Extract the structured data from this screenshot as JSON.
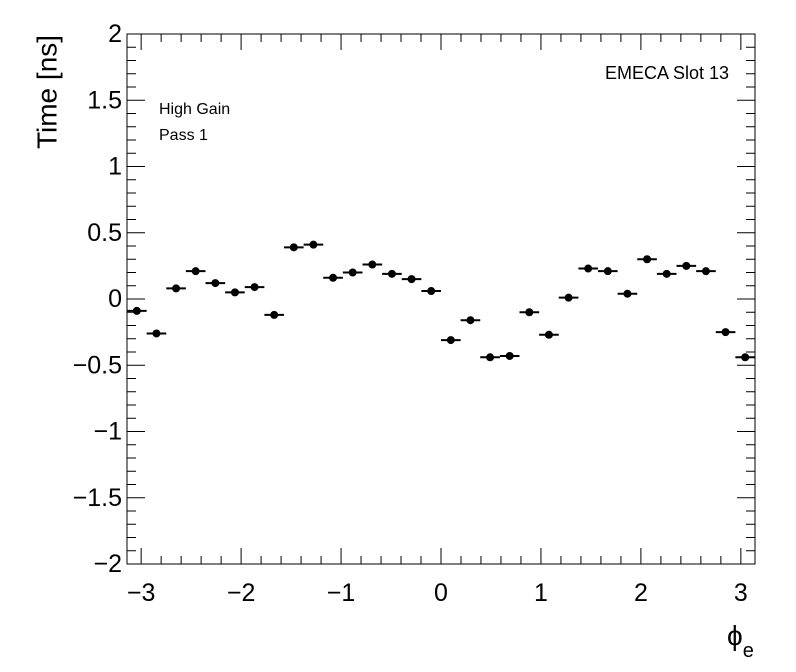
{
  "chart_data": {
    "type": "scatter",
    "title": "",
    "ylabel": "Time [ns]",
    "xlabel_symbol": "ϕ",
    "xlabel_subscript": "e",
    "annotations": {
      "gain": "High Gain",
      "pass": "Pass 1",
      "slot": "EMECA Slot 13"
    },
    "xlim": [
      -3.1416,
      3.1416
    ],
    "ylim": [
      -2,
      2
    ],
    "grid": false,
    "x_major_ticks": [
      -3,
      -2,
      -1,
      0,
      1,
      2,
      3
    ],
    "x_tick_labels": [
      "−3",
      "−2",
      "−1",
      "0",
      "1",
      "2",
      "3"
    ],
    "y_major_ticks": [
      -2,
      -1.5,
      -1,
      -0.5,
      0,
      0.5,
      1,
      1.5,
      2
    ],
    "y_tick_labels": [
      "−2",
      "−1.5",
      "−1",
      "−0.5",
      "0",
      "0.5",
      "1",
      "1.5",
      "2"
    ],
    "bin_width": 0.19635,
    "x": [
      -3.0434,
      -2.8471,
      -2.6507,
      -2.4544,
      -2.258,
      -2.0617,
      -1.8653,
      -1.669,
      -1.4726,
      -1.2763,
      -1.0799,
      -0.8836,
      -0.6872,
      -0.4909,
      -0.2945,
      -0.0982,
      0.0982,
      0.2945,
      0.4909,
      0.6872,
      0.8836,
      1.0799,
      1.2763,
      1.4726,
      1.669,
      1.8653,
      2.0617,
      2.258,
      2.4544,
      2.6507,
      2.8471,
      3.0434
    ],
    "y": [
      -0.09,
      -0.26,
      0.08,
      0.21,
      0.12,
      0.05,
      0.09,
      -0.12,
      0.39,
      0.41,
      0.16,
      0.2,
      0.26,
      0.19,
      0.15,
      0.06,
      -0.31,
      -0.16,
      -0.44,
      -0.43,
      -0.1,
      -0.27,
      0.01,
      0.23,
      0.21,
      0.04,
      0.3,
      0.19,
      0.25,
      0.21,
      -0.25,
      -0.44
    ]
  }
}
